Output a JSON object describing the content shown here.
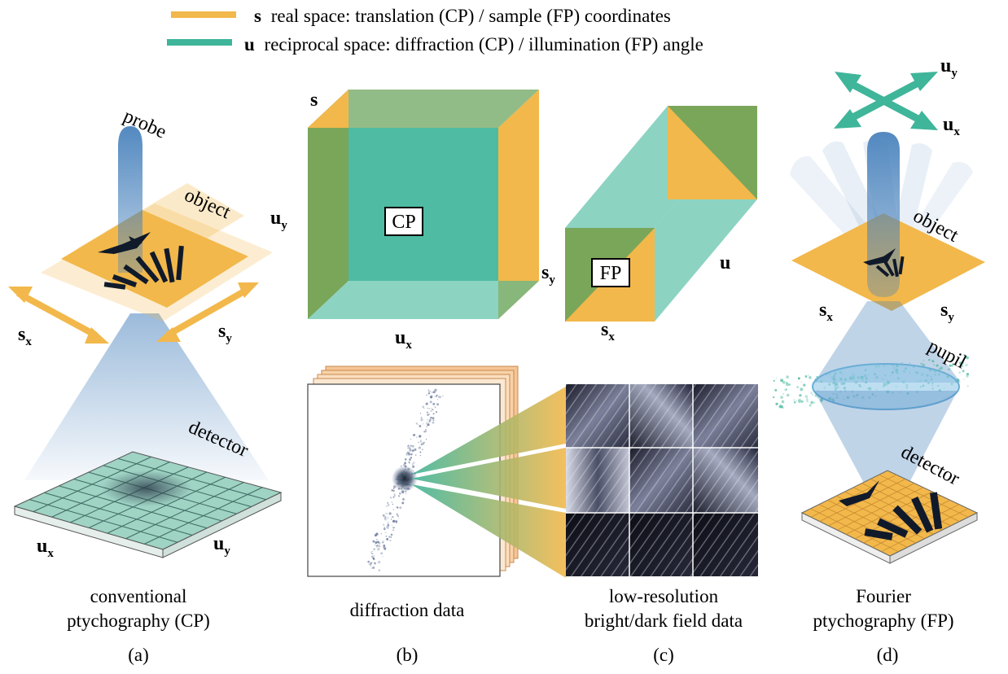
{
  "legend": {
    "real": {
      "symbol": "s",
      "text": "real space: translation (CP) / sample (FP) coordinates",
      "color": "#f2b84b"
    },
    "reciprocal": {
      "symbol": "u",
      "text": "reciprocal space: diffraction (CP) / illumination (FP) angle",
      "color": "#3fb59a"
    }
  },
  "panel_a": {
    "probe": "probe",
    "object": "object",
    "detector": "detector",
    "sx": "s",
    "sy": "s",
    "ux": "u",
    "uy": "u",
    "sub_x": "x",
    "sub_y": "y",
    "caption_line1": "conventional",
    "caption_line2": "ptychography (CP)",
    "letter": "(a)"
  },
  "panel_b": {
    "box_cp": "CP",
    "box_fp": "FP",
    "s": "s",
    "u": "u",
    "uy": "u",
    "ux": "u",
    "sy": "s",
    "sx": "s",
    "sub_x": "x",
    "sub_y": "y",
    "caption": "diffraction data",
    "letter": "(b)"
  },
  "panel_c": {
    "caption_line1": "low-resolution",
    "caption_line2": "bright/dark field data",
    "letter": "(c)"
  },
  "panel_d": {
    "uy": "u",
    "ux": "u",
    "object": "object",
    "sx": "s",
    "sy": "s",
    "pupil": "pupil",
    "detector": "detector",
    "sub_x": "x",
    "sub_y": "y",
    "caption_line1": "Fourier",
    "caption_line2": "ptychography (FP)",
    "letter": "(d)"
  },
  "colors": {
    "orange": "#f2b84b",
    "teal": "#3fb59a",
    "blue": "#4a83bd",
    "darkGreen": "#7aa65a"
  }
}
